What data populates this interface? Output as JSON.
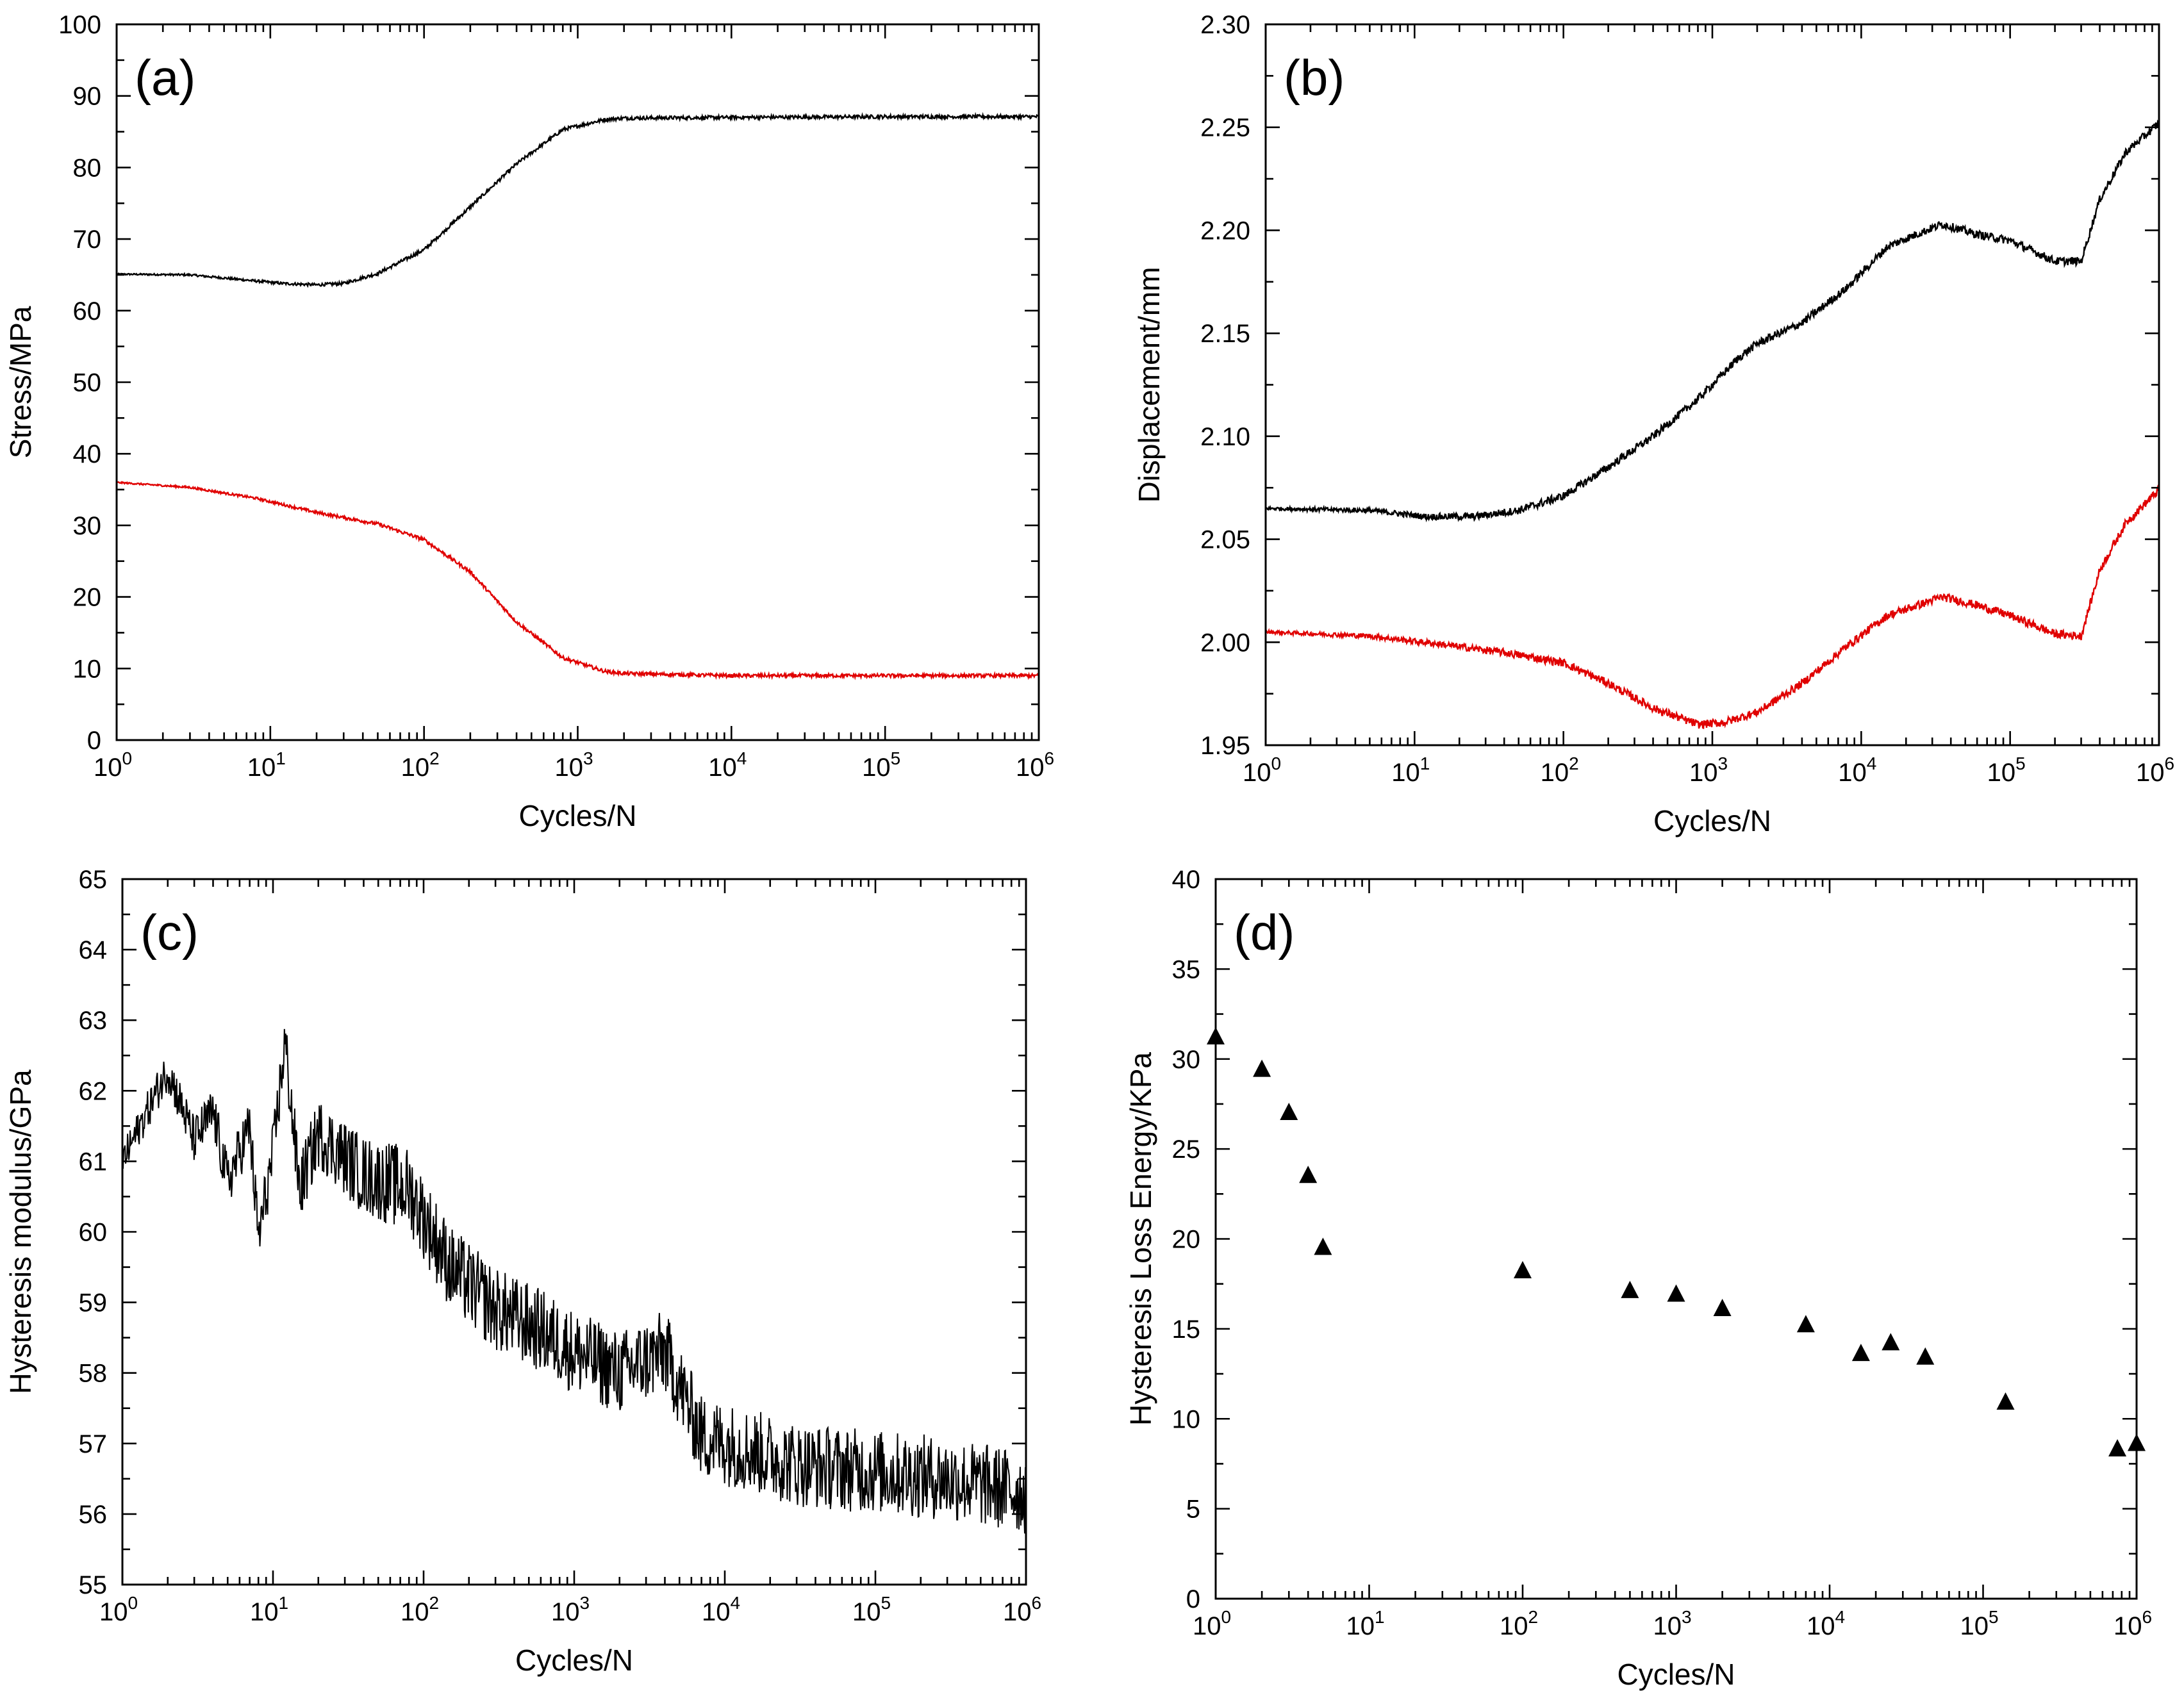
{
  "chart_data": [
    {
      "type": "line",
      "panel_label": "(a)",
      "xlabel": "Cycles/N",
      "ylabel": "Stress/MPa",
      "xscale": "log",
      "xlim": [
        1,
        1000000
      ],
      "ylim": [
        0,
        100
      ],
      "x_ticks": [
        1,
        10,
        100,
        1000,
        10000,
        100000,
        1000000
      ],
      "y_ticks": [
        "0",
        "10",
        "20",
        "30",
        "40",
        "50",
        "60",
        "70",
        "80",
        "90",
        "100"
      ],
      "series": [
        {
          "color": "#000000",
          "noise": 0.25,
          "points": [
            [
              1,
              65.1
            ],
            [
              3,
              65.0
            ],
            [
              6,
              64.4
            ],
            [
              12,
              63.8
            ],
            [
              20,
              63.6
            ],
            [
              30,
              63.8
            ],
            [
              50,
              65.2
            ],
            [
              100,
              68.5
            ],
            [
              200,
              74.5
            ],
            [
              400,
              80.5
            ],
            [
              800,
              85.3
            ],
            [
              1500,
              86.7
            ],
            [
              2000,
              86.9
            ],
            [
              10000,
              87.0
            ],
            [
              100000,
              87.1
            ],
            [
              1000000,
              87.1
            ]
          ]
        },
        {
          "color": "#e00000",
          "noise": 0.25,
          "points": [
            [
              1,
              36.0
            ],
            [
              3,
              35.3
            ],
            [
              8,
              33.8
            ],
            [
              20,
              31.8
            ],
            [
              50,
              30.2
            ],
            [
              100,
              28.0
            ],
            [
              200,
              23.5
            ],
            [
              400,
              16.5
            ],
            [
              800,
              11.5
            ],
            [
              1500,
              9.6
            ],
            [
              2000,
              9.3
            ],
            [
              10000,
              9.0
            ],
            [
              100000,
              9.0
            ],
            [
              1000000,
              9.0
            ]
          ]
        }
      ]
    },
    {
      "type": "line",
      "panel_label": "(b)",
      "xlabel": "Cycles/N",
      "ylabel": "Displacement/mm",
      "xscale": "log",
      "xlim": [
        1,
        1000000
      ],
      "ylim": [
        1.95,
        2.3
      ],
      "x_ticks": [
        1,
        10,
        100,
        1000,
        10000,
        100000,
        1000000
      ],
      "y_ticks": [
        "1.95",
        "2.00",
        "2.05",
        "2.10",
        "2.15",
        "2.20",
        "2.25",
        "2.30"
      ],
      "series": [
        {
          "color": "#000000",
          "noise": 0.002,
          "points": [
            [
              1,
              2.065
            ],
            [
              5,
              2.064
            ],
            [
              12,
              2.061
            ],
            [
              25,
              2.061
            ],
            [
              50,
              2.064
            ],
            [
              100,
              2.071
            ],
            [
              200,
              2.085
            ],
            [
              400,
              2.1
            ],
            [
              800,
              2.118
            ],
            [
              1500,
              2.138
            ],
            [
              2000,
              2.145
            ],
            [
              4000,
              2.155
            ],
            [
              8000,
              2.172
            ],
            [
              15000,
              2.192
            ],
            [
              20000,
              2.196
            ],
            [
              35000,
              2.203
            ],
            [
              60000,
              2.198
            ],
            [
              100000,
              2.195
            ],
            [
              200000,
              2.185
            ],
            [
              300000,
              2.185
            ],
            [
              400000,
              2.215
            ],
            [
              600000,
              2.238
            ],
            [
              1000000,
              2.252
            ]
          ]
        },
        {
          "color": "#e00000",
          "noise": 0.002,
          "points": [
            [
              1,
              2.005
            ],
            [
              5,
              2.003
            ],
            [
              15,
              1.999
            ],
            [
              40,
              1.995
            ],
            [
              100,
              1.99
            ],
            [
              200,
              1.98
            ],
            [
              400,
              1.968
            ],
            [
              800,
              1.96
            ],
            [
              1200,
              1.961
            ],
            [
              2000,
              1.966
            ],
            [
              4000,
              1.98
            ],
            [
              8000,
              1.998
            ],
            [
              15000,
              2.013
            ],
            [
              20000,
              2.016
            ],
            [
              35000,
              2.022
            ],
            [
              60000,
              2.018
            ],
            [
              100000,
              2.013
            ],
            [
              200000,
              2.004
            ],
            [
              300000,
              2.003
            ],
            [
              400000,
              2.035
            ],
            [
              600000,
              2.058
            ],
            [
              1000000,
              2.074
            ]
          ]
        }
      ]
    },
    {
      "type": "line",
      "panel_label": "(c)",
      "xlabel": "Cycles/N",
      "ylabel": "Hysteresis modulus/GPa",
      "xscale": "log",
      "xlim": [
        1,
        1000000
      ],
      "ylim": [
        55,
        65
      ],
      "x_ticks": [
        1,
        10,
        100,
        1000,
        10000,
        100000,
        1000000
      ],
      "y_ticks": [
        "55",
        "56",
        "57",
        "58",
        "59",
        "60",
        "61",
        "62",
        "63",
        "64",
        "65"
      ],
      "series": [
        {
          "color": "#000000",
          "noise": 0.6,
          "points": [
            [
              1,
              61.0
            ],
            [
              2,
              62.3
            ],
            [
              3,
              61.3
            ],
            [
              4,
              61.7
            ],
            [
              5,
              60.7
            ],
            [
              7,
              61.5
            ],
            [
              8,
              59.9
            ],
            [
              10,
              61.1
            ],
            [
              12,
              62.7
            ],
            [
              15,
              60.6
            ],
            [
              20,
              61.4
            ],
            [
              40,
              60.8
            ],
            [
              80,
              60.6
            ],
            [
              150,
              59.5
            ],
            [
              300,
              58.9
            ],
            [
              600,
              58.6
            ],
            [
              1000,
              58.3
            ],
            [
              2000,
              58.0
            ],
            [
              4000,
              58.3
            ],
            [
              7000,
              57.1
            ],
            [
              10000,
              57.0
            ],
            [
              15000,
              56.9
            ],
            [
              30000,
              56.7
            ],
            [
              100000,
              56.6
            ],
            [
              300000,
              56.5
            ],
            [
              1000000,
              56.3
            ]
          ]
        }
      ]
    },
    {
      "type": "scatter",
      "panel_label": "(d)",
      "xlabel": "Cycles/N",
      "ylabel": "Hysteresis Loss Energy/KPa",
      "xscale": "log",
      "xlim": [
        1,
        1000000
      ],
      "ylim": [
        0,
        40
      ],
      "x_ticks": [
        1,
        10,
        100,
        1000,
        10000,
        100000,
        1000000
      ],
      "y_ticks": [
        "0",
        "5",
        "10",
        "15",
        "20",
        "25",
        "30",
        "35",
        "40"
      ],
      "series": [
        {
          "color": "#000000",
          "marker": "triangle",
          "points": [
            [
              1,
              31.2
            ],
            [
              2,
              29.4
            ],
            [
              3,
              27.0
            ],
            [
              4,
              23.5
            ],
            [
              5,
              19.5
            ],
            [
              100,
              18.2
            ],
            [
              500,
              17.1
            ],
            [
              1000,
              16.9
            ],
            [
              2000,
              16.1
            ],
            [
              7000,
              15.2
            ],
            [
              16000,
              13.6
            ],
            [
              25000,
              14.2
            ],
            [
              42000,
              13.4
            ],
            [
              140000,
              10.9
            ],
            [
              750000,
              8.3
            ],
            [
              1000000,
              8.6
            ]
          ]
        }
      ]
    }
  ]
}
